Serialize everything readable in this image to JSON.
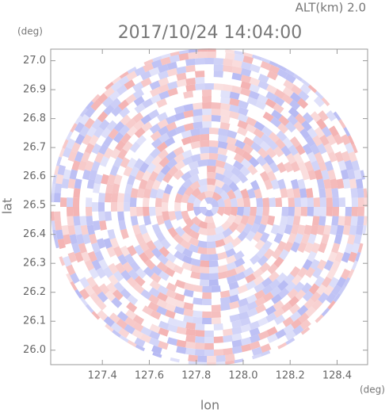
{
  "chart_data": {
    "type": "radar-ppi",
    "title": "2017/10/24 14:04:00",
    "subtitle": "ALT(km) 2.0",
    "x_label": "lon",
    "y_label": "lat",
    "x_unit": "(deg)",
    "y_unit": "(deg)",
    "xlim": [
      127.18,
      128.53
    ],
    "ylim": [
      25.95,
      27.04
    ],
    "xticks": [
      127.4,
      127.6,
      127.8,
      {
        "value": 128.0,
        "label": "128.0"
      },
      128.2,
      128.4
    ],
    "yticks": [
      {
        "value": 26.0,
        "label": "26.0"
      },
      26.1,
      26.2,
      26.3,
      26.4,
      26.5,
      26.6,
      26.7,
      26.8,
      26.9,
      {
        "value": 27.0,
        "label": "27.0"
      }
    ],
    "colors": [
      "#f2a9a9",
      "#aeb2f2"
    ]
  }
}
